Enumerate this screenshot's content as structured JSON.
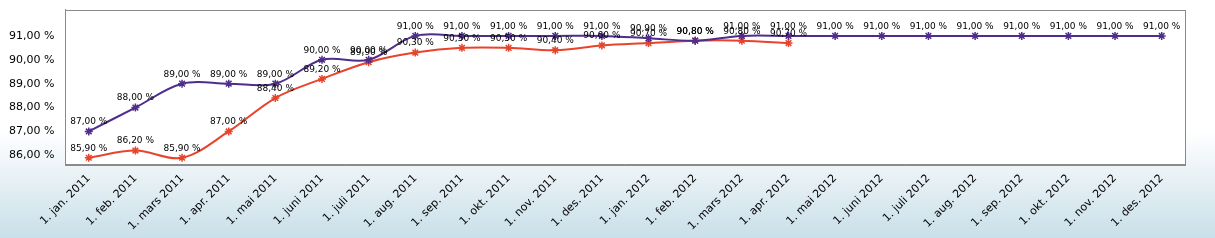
{
  "chart_data": {
    "type": "line",
    "categories": [
      "1. jan. 2011",
      "1. feb. 2011",
      "1. mars 2011",
      "1. apr. 2011",
      "1. mai 2011",
      "1. juni 2011",
      "1. juli 2011",
      "1. aug. 2011",
      "1. sep. 2011",
      "1. okt. 2011",
      "1. nov. 2011",
      "1. des. 2011",
      "1. jan. 2012",
      "1. feb. 2012",
      "1. mars 2012",
      "1. apr. 2012",
      "1. mai 2012",
      "1. juni 2012",
      "1. juli 2012",
      "1. aug. 2012",
      "1. sep. 2012",
      "1. okt. 2012",
      "1. nov. 2012",
      "1. des. 2012"
    ],
    "series": [
      {
        "color": "#4e2d8c",
        "marker": "star",
        "values": [
          87,
          88,
          89,
          89,
          89,
          90,
          90,
          91,
          91,
          91,
          91,
          91,
          90.9,
          90.8,
          91,
          91,
          91,
          91,
          91,
          91,
          91,
          91,
          91,
          91
        ],
        "value_labels": [
          "87,00 %",
          "88,00 %",
          "89,00 %",
          "89,00 %",
          "89,00 %",
          "90,00 %",
          "90,00 %",
          "91,00 %",
          "91,00 %",
          "91,00 %",
          "91,00 %",
          "91,00 %",
          "90,90 %",
          "90,80 %",
          "91,00 %",
          "91,00 %",
          "91,00 %",
          "91,00 %",
          "91,00 %",
          "91,00 %",
          "91,00 %",
          "91,00 %",
          "91,00 %",
          "91,00 %"
        ]
      },
      {
        "color": "#e8432b",
        "marker": "star",
        "values": [
          85.9,
          86.2,
          85.9,
          87,
          88.4,
          89.2,
          89.9,
          90.3,
          90.5,
          90.5,
          90.4,
          90.6,
          90.7,
          90.8,
          90.8,
          90.7,
          null,
          null,
          null,
          null,
          null,
          null,
          null,
          null
        ],
        "value_labels": [
          "85,90 %",
          "86,20 %",
          "85,90 %",
          "87,00 %",
          "88,40 %",
          "89,20 %",
          "89,90 %",
          "90,30 %",
          "90,50 %",
          "90,50 %",
          "90,40 %",
          "90,60 %",
          "90,70 %",
          "90,80 %",
          "90,80 %",
          "90,70 %",
          null,
          null,
          null,
          null,
          null,
          null,
          null,
          null
        ]
      }
    ],
    "ylim": [
      85.6,
      92.1
    ],
    "yticks": [
      {
        "value": 86,
        "label": "86,00 %"
      },
      {
        "value": 87,
        "label": "87,00 %"
      },
      {
        "value": 88,
        "label": "88,00 %"
      },
      {
        "value": 89,
        "label": "89,00 %"
      },
      {
        "value": 90,
        "label": "90,00 %"
      },
      {
        "value": 91,
        "label": "91,00 %"
      }
    ],
    "grid": false,
    "data_labels": true
  }
}
